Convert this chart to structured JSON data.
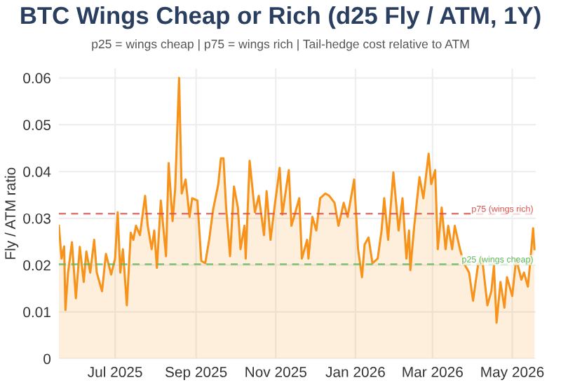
{
  "chart_data": {
    "type": "area",
    "title": "BTC Wings Cheap or Rich (d25 Fly / ATM, 1Y)",
    "subtitle": "p25 = wings cheap | p75 = wings rich | Tail-hedge cost relative to ATM",
    "ylabel": "Fly / ATM ratio",
    "x": [
      "2025-05-19",
      "2025-05-21",
      "2025-05-23",
      "2025-05-24",
      "2025-05-26",
      "2025-05-29",
      "2025-06-01",
      "2025-06-04",
      "2025-06-07",
      "2025-06-09",
      "2025-06-12",
      "2025-06-15",
      "2025-06-17",
      "2025-06-21",
      "2025-06-24",
      "2025-06-28",
      "2025-07-01",
      "2025-07-03",
      "2025-07-05",
      "2025-07-07",
      "2025-07-10",
      "2025-07-13",
      "2025-07-15",
      "2025-07-17",
      "2025-07-20",
      "2025-07-24",
      "2025-07-26",
      "2025-07-29",
      "2025-07-31",
      "2025-08-02",
      "2025-08-05",
      "2025-08-09",
      "2025-08-11",
      "2025-08-14",
      "2025-08-16",
      "2025-08-19",
      "2025-08-21",
      "2025-08-24",
      "2025-08-27",
      "2025-08-29",
      "2025-09-02",
      "2025-09-05",
      "2025-09-08",
      "2025-09-11",
      "2025-09-14",
      "2025-09-18",
      "2025-09-20",
      "2025-09-22",
      "2025-09-24",
      "2025-09-27",
      "2025-09-30",
      "2025-10-03",
      "2025-10-05",
      "2025-10-08",
      "2025-10-09",
      "2025-10-12",
      "2025-10-16",
      "2025-10-19",
      "2025-10-23",
      "2025-10-25",
      "2025-10-28",
      "2025-10-31",
      "2025-11-04",
      "2025-11-06",
      "2025-11-11",
      "2025-11-13",
      "2025-11-16",
      "2025-11-19",
      "2025-11-21",
      "2025-11-25",
      "2025-11-26",
      "2025-11-29",
      "2025-12-02",
      "2025-12-05",
      "2025-12-09",
      "2025-12-12",
      "2025-12-16",
      "2025-12-19",
      "2025-12-23",
      "2025-12-26",
      "2025-12-31",
      "2026-01-03",
      "2026-01-06",
      "2026-01-08",
      "2026-01-11",
      "2026-01-14",
      "2026-01-18",
      "2026-01-21",
      "2026-01-23",
      "2026-01-26",
      "2026-01-30",
      "2026-02-03",
      "2026-02-06",
      "2026-02-09",
      "2026-02-11",
      "2026-02-12",
      "2026-02-15",
      "2026-02-19",
      "2026-02-22",
      "2026-02-26",
      "2026-02-28",
      "2026-03-03",
      "2026-03-05",
      "2026-03-08",
      "2026-03-11",
      "2026-03-13",
      "2026-03-16",
      "2026-03-18",
      "2026-03-22",
      "2026-03-25",
      "2026-03-29",
      "2026-04-01",
      "2026-04-05",
      "2026-04-08",
      "2026-04-12",
      "2026-04-15",
      "2026-04-17",
      "2026-04-19",
      "2026-04-22",
      "2026-04-25",
      "2026-04-27",
      "2026-05-01",
      "2026-05-04",
      "2026-05-08",
      "2026-05-10",
      "2026-05-13",
      "2026-05-15",
      "2026-05-17",
      "2026-05-18"
    ],
    "series": [
      {
        "color": "#f7931a",
        "values": [
          0.0284,
          0.0214,
          0.024,
          0.0104,
          0.0184,
          0.0249,
          0.0129,
          0.0239,
          0.0164,
          0.0229,
          0.0184,
          0.0254,
          0.0184,
          0.0144,
          0.0224,
          0.018,
          0.0214,
          0.0313,
          0.0184,
          0.0234,
          0.0114,
          0.0269,
          0.0254,
          0.0284,
          0.0264,
          0.0348,
          0.0284,
          0.0234,
          0.0274,
          0.0194,
          0.0338,
          0.0219,
          0.0418,
          0.0294,
          0.0363,
          0.06,
          0.0353,
          0.0383,
          0.0303,
          0.0343,
          0.0338,
          0.0209,
          0.0204,
          0.0254,
          0.0318,
          0.0373,
          0.0428,
          0.0428,
          0.0323,
          0.0219,
          0.0368,
          0.0323,
          0.0234,
          0.0284,
          0.0214,
          0.0423,
          0.0313,
          0.0348,
          0.0264,
          0.0358,
          0.0254,
          0.0323,
          0.0408,
          0.0308,
          0.0403,
          0.0284,
          0.0313,
          0.0343,
          0.0214,
          0.0254,
          0.0214,
          0.0303,
          0.0274,
          0.0343,
          0.0353,
          0.0348,
          0.0333,
          0.0284,
          0.0333,
          0.0303,
          0.0383,
          0.0234,
          0.0174,
          0.0244,
          0.0259,
          0.0204,
          0.0214,
          0.0274,
          0.0343,
          0.0254,
          0.0398,
          0.0274,
          0.0343,
          0.0214,
          0.0274,
          0.0189,
          0.0284,
          0.0388,
          0.0343,
          0.0438,
          0.0373,
          0.0403,
          0.0234,
          0.0323,
          0.0234,
          0.0284,
          0.0234,
          0.0284,
          0.0234,
          0.0204,
          0.0184,
          0.0124,
          0.0204,
          0.0214,
          0.0114,
          0.0144,
          0.0199,
          0.0077,
          0.0164,
          0.0109,
          0.0174,
          0.0134,
          0.0214,
          0.0169,
          0.0184,
          0.0154,
          0.0214,
          0.0279,
          0.0234
        ]
      }
    ],
    "xlim": [
      "2025-05-19",
      "2026-05-19"
    ],
    "xticks": [
      {
        "value": "2025-07-01",
        "label": "Jul 2025"
      },
      {
        "value": "2025-09-01",
        "label": "Sep 2025"
      },
      {
        "value": "2025-11-01",
        "label": "Nov 2025"
      },
      {
        "value": "2026-01-01",
        "label": "Jan 2026"
      },
      {
        "value": "2026-03-01",
        "label": "Mar 2026"
      },
      {
        "value": "2026-05-01",
        "label": "May 2026"
      }
    ],
    "ylim": [
      0,
      0.062
    ],
    "yticks": [
      0,
      0.01,
      0.02,
      0.03,
      0.04,
      0.05,
      0.06
    ],
    "ref_lines": [
      {
        "axis": "y",
        "value": 0.031,
        "label": "p75 (wings rich)",
        "color": "#d9534f",
        "line_style": "dashed"
      },
      {
        "axis": "y",
        "value": 0.0202,
        "label": "p25 (wings cheap)",
        "color": "#5cb85c",
        "line_style": "dashed"
      }
    ],
    "grid": true,
    "legend": false
  }
}
